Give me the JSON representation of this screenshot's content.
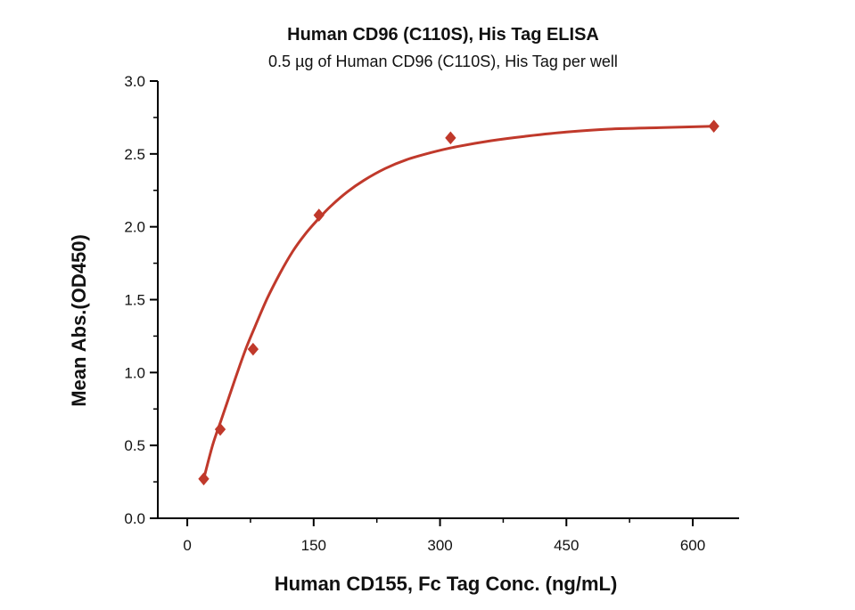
{
  "colors": {
    "series": "#c0392b",
    "axis": "#000000"
  },
  "chart_data": {
    "type": "scatter",
    "title": "Human CD96 (C110S), His Tag ELISA",
    "subtitle": "0.5 µg of Human CD96 (C110S), His Tag per well",
    "xlabel": "Human CD155, Fc Tag Conc. (ng/mL)",
    "ylabel": "Mean Abs.(OD450)",
    "xlim": [
      -35,
      655
    ],
    "ylim": [
      0,
      3.0
    ],
    "x_ticks": [
      0,
      150,
      300,
      450,
      600
    ],
    "x_tick_labels": [
      "0",
      "150",
      "300",
      "450",
      "600"
    ],
    "y_ticks": [
      0.0,
      0.5,
      1.0,
      1.5,
      2.0,
      2.5,
      3.0
    ],
    "y_tick_labels": [
      "0.0",
      "0.5",
      "1.0",
      "1.5",
      "2.0",
      "2.5",
      "3.0"
    ],
    "series": [
      {
        "name": "Human CD155, Fc Tag",
        "marker": "diamond",
        "x": [
          19.5,
          39.1,
          78.1,
          156.3,
          312.5,
          625
        ],
        "y": [
          0.27,
          0.61,
          1.16,
          2.08,
          2.61,
          2.69
        ]
      }
    ],
    "fit_curve": {
      "type": "4PL",
      "x": [
        19.5,
        30,
        40,
        50,
        60,
        70,
        80,
        95,
        110,
        125,
        140,
        155,
        170,
        190,
        210,
        235,
        260,
        290,
        320,
        360,
        400,
        450,
        500,
        560,
        625
      ],
      "y": [
        0.27,
        0.5,
        0.67,
        0.84,
        1.01,
        1.17,
        1.31,
        1.51,
        1.68,
        1.83,
        1.95,
        2.05,
        2.14,
        2.24,
        2.32,
        2.4,
        2.46,
        2.51,
        2.55,
        2.59,
        2.62,
        2.65,
        2.67,
        2.68,
        2.69
      ]
    }
  }
}
